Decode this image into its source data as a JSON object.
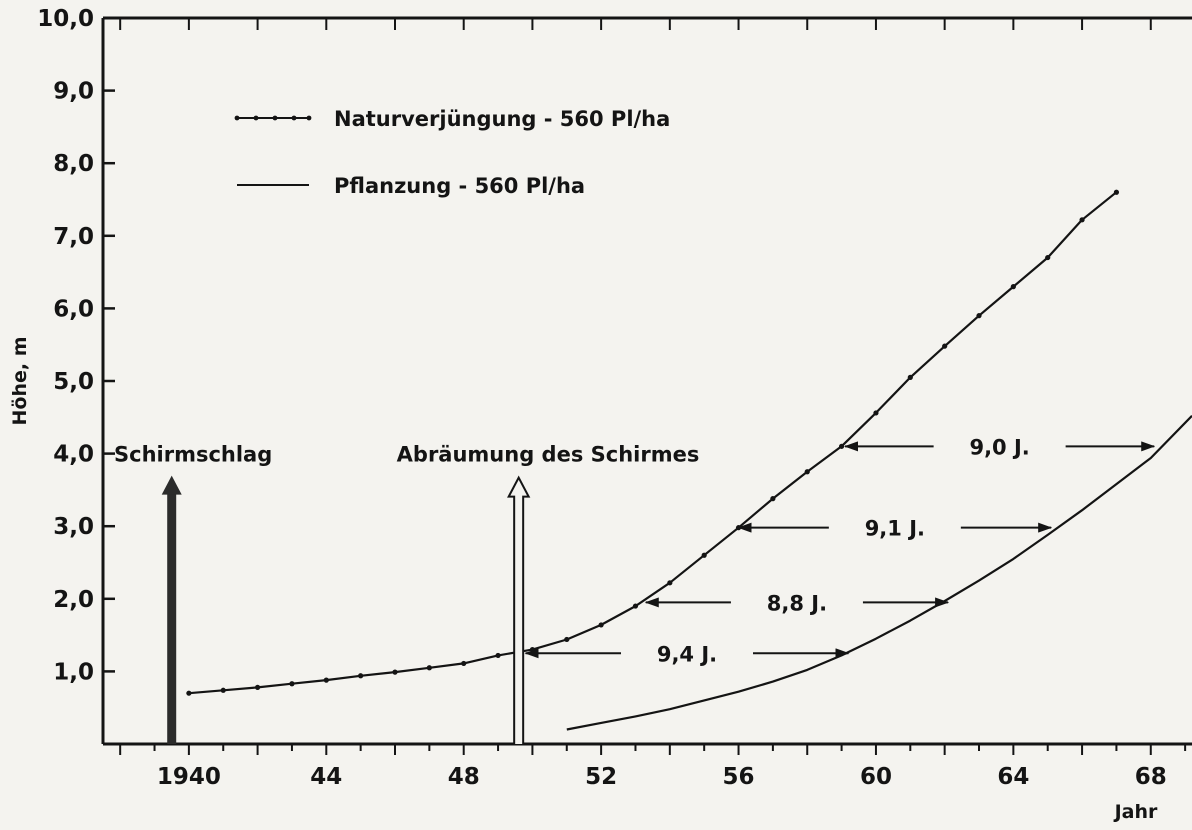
{
  "chart_data": {
    "type": "line",
    "title": "",
    "xlabel": "Jahr",
    "ylabel": "Höhe, m",
    "xlim": [
      1937.5,
      1969.2
    ],
    "ylim": [
      0,
      10
    ],
    "x_ticks": [
      1940,
      1944,
      1948,
      1952,
      1956,
      1960,
      1964,
      1968
    ],
    "x_tick_labels": [
      "1940",
      "44",
      "48",
      "52",
      "56",
      "60",
      "64",
      "68"
    ],
    "y_ticks": [
      1,
      2,
      3,
      4,
      5,
      6,
      7,
      8,
      9,
      10
    ],
    "y_tick_labels": [
      "1,0",
      "2,0",
      "3,0",
      "4,0",
      "5,0",
      "6,0",
      "7,0",
      "8,0",
      "9,0",
      "10,0"
    ],
    "grid": false,
    "legend_position": "top-left",
    "series": [
      {
        "name": "Naturverjüngung - 560 Pl/ha",
        "marker": "dot",
        "x": [
          1940,
          1941,
          1942,
          1943,
          1944,
          1945,
          1946,
          1947,
          1948,
          1949,
          1950,
          1951,
          1952,
          1953,
          1954,
          1955,
          1956,
          1957,
          1958,
          1959,
          1960,
          1961,
          1962,
          1963,
          1964,
          1965,
          1966,
          1967
        ],
        "y": [
          0.7,
          0.74,
          0.78,
          0.83,
          0.88,
          0.94,
          0.99,
          1.05,
          1.11,
          1.22,
          1.3,
          1.44,
          1.64,
          1.9,
          2.22,
          2.6,
          2.98,
          3.38,
          3.75,
          4.1,
          4.56,
          5.05,
          5.48,
          5.9,
          6.3,
          6.7,
          7.22,
          7.6
        ]
      },
      {
        "name": "Pflanzung - 560 Pl/ha",
        "marker": "none",
        "x": [
          1951,
          1952,
          1953,
          1954,
          1955,
          1956,
          1957,
          1958,
          1959,
          1960,
          1961,
          1962,
          1963,
          1964,
          1965,
          1966,
          1967,
          1968,
          1969.2
        ],
        "y": [
          0.2,
          0.29,
          0.38,
          0.48,
          0.6,
          0.72,
          0.86,
          1.02,
          1.22,
          1.45,
          1.7,
          1.97,
          2.25,
          2.55,
          2.88,
          3.22,
          3.58,
          3.94,
          4.52
        ]
      }
    ],
    "annotations": [
      {
        "id": "schirmschlag",
        "text": "Schirmschlag",
        "x": 1939.5,
        "y": 4.0,
        "arrow": "filled"
      },
      {
        "id": "abraeumung",
        "text": "Abräumung des Schirmes",
        "x": 1949.6,
        "y": 4.0,
        "arrow": "hollow"
      }
    ],
    "intervals": [
      {
        "text": "9,4 J.",
        "y": 1.25,
        "x_start": 1949.8,
        "x_end": 1959.2
      },
      {
        "text": "8,8 J.",
        "y": 1.95,
        "x_start": 1953.3,
        "x_end": 1962.1
      },
      {
        "text": "9,1 J.",
        "y": 2.98,
        "x_start": 1956.0,
        "x_end": 1965.1
      },
      {
        "text": "9,0 J.",
        "y": 4.1,
        "x_start": 1959.1,
        "x_end": 1968.1
      }
    ]
  }
}
